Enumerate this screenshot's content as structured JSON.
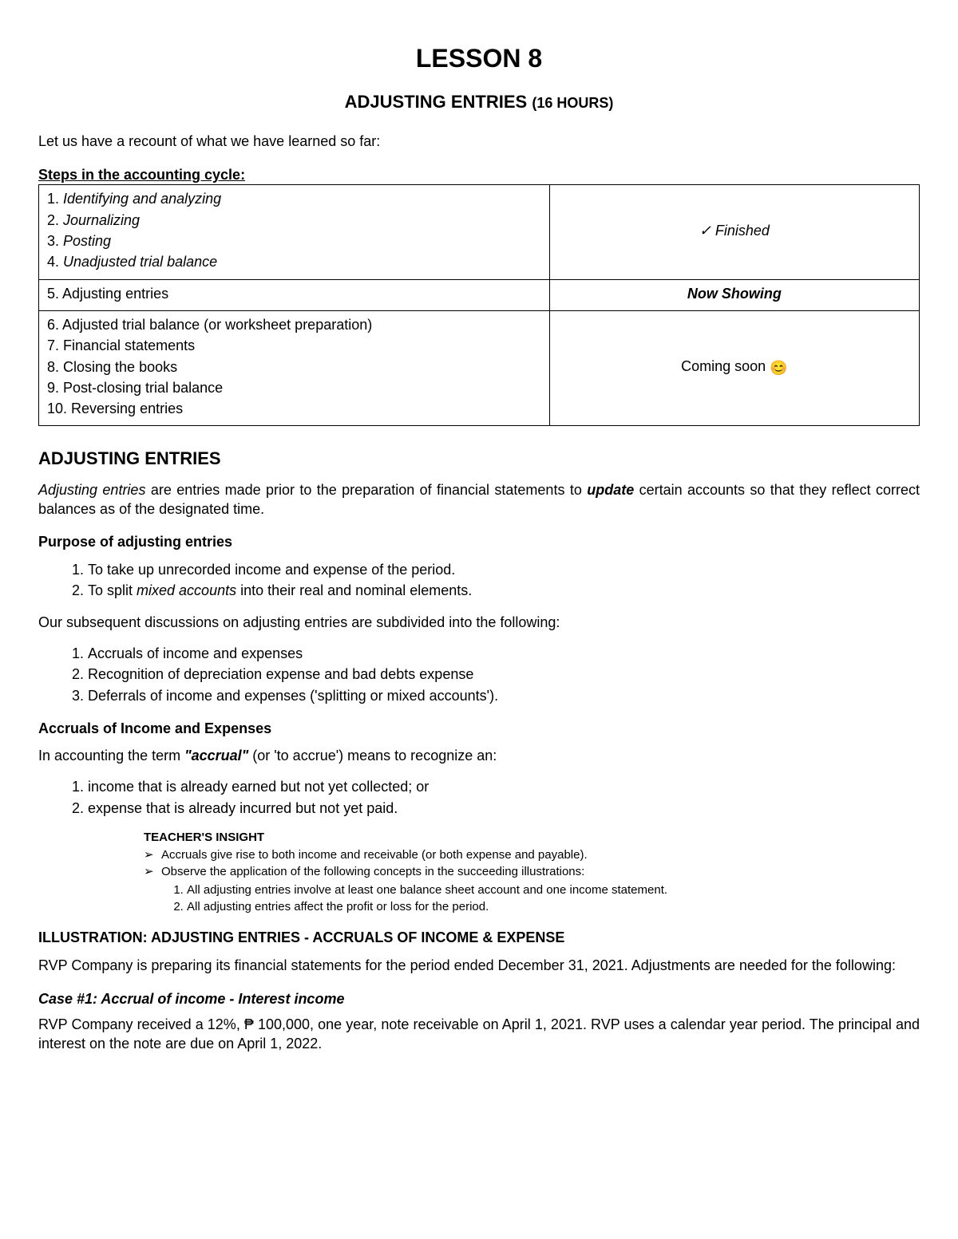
{
  "title": "LESSON 8",
  "subtitle_main": "ADJUSTING ENTRIES",
  "subtitle_hours": "(16 HOURS)",
  "intro": "Let us have a recount of what we have learned so far:",
  "cycle_heading": "Steps in the accounting cycle:",
  "cycle": {
    "rows": [
      {
        "steps": [
          {
            "n": "1.",
            "text": "Identifying and analyzing",
            "italic": true
          },
          {
            "n": "2.",
            "text": "Journalizing",
            "italic": true
          },
          {
            "n": "3.",
            "text": "Posting",
            "italic": true
          },
          {
            "n": "4.",
            "text": "Unadjusted trial balance",
            "italic": true
          }
        ],
        "status_text": "Finished",
        "status_prefix": "✓  ",
        "status_style": "ital"
      },
      {
        "steps": [
          {
            "n": "5.",
            "text": "Adjusting entries",
            "italic": false
          }
        ],
        "status_text": "Now Showing",
        "status_style": "bolditalic"
      },
      {
        "steps": [
          {
            "n": "6.",
            "text": "Adjusted trial balance (or worksheet preparation)"
          },
          {
            "n": "7.",
            "text": "Financial statements"
          },
          {
            "n": "8.",
            "text": "Closing the books"
          },
          {
            "n": "9.",
            "text": "Post-closing trial balance"
          },
          {
            "n": "10.",
            "text": "Reversing entries"
          }
        ],
        "status_text": "Coming soon ",
        "status_emoji": "😊",
        "status_style": ""
      }
    ]
  },
  "section_heading": "ADJUSTING ENTRIES",
  "definition_lead": "Adjusting entries",
  "definition_mid1": " are entries made prior to the preparation of financial statements to ",
  "definition_bold": "update",
  "definition_tail": " certain accounts so that they reflect correct balances as of the designated time.",
  "purpose_heading": "Purpose of adjusting entries",
  "purpose": [
    "To take up unrecorded income and expense of the period.",
    "To split mixed accounts into their real and nominal elements."
  ],
  "purpose_2_pre": "To split ",
  "purpose_2_ital": "mixed accounts",
  "purpose_2_post": " into their real and nominal elements.",
  "subdivide_intro": "Our subsequent discussions on adjusting entries are subdivided into the following:",
  "subdivide": [
    "Accruals of income and expenses",
    "Recognition of depreciation expense and bad debts expense",
    "Deferrals of income and expenses ('splitting or mixed accounts')."
  ],
  "accruals_heading": "Accruals of Income and Expenses",
  "accruals_intro_pre": "In accounting the term ",
  "accruals_intro_term": "\"accrual\"",
  "accruals_intro_post": " (or 'to accrue') means to recognize an:",
  "accruals_list": [
    "income that is already earned but not yet collected; or",
    "expense that is already incurred but not yet paid."
  ],
  "insight_heading": "TEACHER'S INSIGHT",
  "insight_b1": "Accruals give rise to both income and receivable (or both expense and payable).",
  "insight_b2": "Observe the application of the following concepts in the succeeding illustrations:",
  "insight_sub": [
    "All adjusting entries involve at least one balance sheet account and one income statement.",
    "All adjusting entries affect the profit or loss for the period."
  ],
  "illus_heading": "ILLUSTRATION: ADJUSTING ENTRIES - ACCRUALS OF INCOME & EXPENSE",
  "illus_para": "RVP Company is preparing its financial statements for the period ended December 31, 2021. Adjustments are needed for the following:",
  "case_heading": "Case #1: Accrual of income - Interest income",
  "case_para": "RVP Company received a 12%, ₱ 100,000, one year, note receivable on April 1, 2021. RVP uses a calendar year period. The principal and interest on the note are due on April 1, 2022."
}
